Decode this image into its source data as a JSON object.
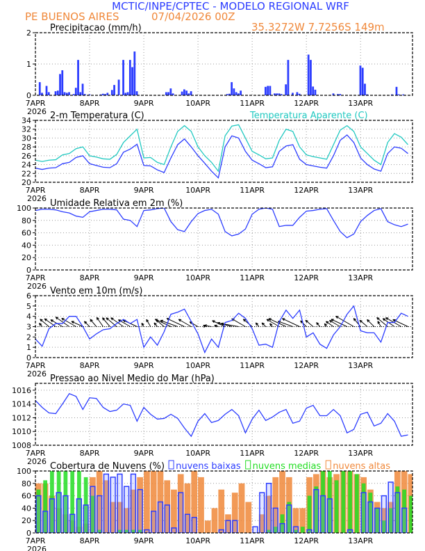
{
  "header": {
    "title": "MCTIC/INPE/CPTEC - MODELO REGIONAL WRF",
    "location": "PE BUENOS AIRES",
    "run": "07/04/2026 00Z",
    "coords": "35.3272W 7.7256S 149m"
  },
  "colors": {
    "title": "#2b3cff",
    "orange": "#f0883a",
    "blue": "#2b3cff",
    "cyan": "#1fc8c0",
    "green": "#22dd22",
    "black": "#000000"
  },
  "x_axis": {
    "labels": [
      "7APR",
      "8APR",
      "9APR",
      "10APR",
      "11APR",
      "12APR",
      "13APR"
    ],
    "year": "2026",
    "hours_range": [
      0,
      167
    ]
  },
  "chart_data": [
    {
      "type": "bar",
      "title": "Precipitacao (mm/h)",
      "ylim": [
        0,
        2
      ],
      "yticks": [
        0,
        1,
        2
      ],
      "grid": true,
      "series": [
        {
          "color": "#2b3cff",
          "hours": [
            2,
            3,
            5,
            6,
            9,
            10,
            11,
            12,
            13,
            14,
            15,
            17,
            18,
            19,
            20,
            21,
            22,
            24,
            29,
            30,
            31,
            32,
            34,
            35,
            37,
            39,
            40,
            41,
            42,
            43,
            44,
            45,
            58,
            59,
            60,
            61,
            65,
            66,
            67,
            68,
            69,
            85,
            86,
            87,
            88,
            89,
            90,
            91,
            102,
            103,
            104,
            106,
            107,
            108,
            109,
            111,
            112,
            114,
            116,
            117,
            121,
            122,
            123,
            124,
            132,
            134,
            135,
            144,
            145,
            146,
            147,
            158,
            160,
            161,
            163
          ],
          "values": [
            0.42,
            0.08,
            0.3,
            0.1,
            0.13,
            0.15,
            0.68,
            0.8,
            0.1,
            0.08,
            0.1,
            0.04,
            0.24,
            1.13,
            0.1,
            0.37,
            0.04,
            0.03,
            0.03,
            0.05,
            0.04,
            0.08,
            0.17,
            0.33,
            0.5,
            1.13,
            0.08,
            0.1,
            1.13,
            0.9,
            1.4,
            0.13,
            0.1,
            0.1,
            0.22,
            0.06,
            0.12,
            0.19,
            0.15,
            0.06,
            0.13,
            0.04,
            0.05,
            0.42,
            0.22,
            0.1,
            0.06,
            0.15,
            0.27,
            0.3,
            0.3,
            0.06,
            0.06,
            0.06,
            0.04,
            0.35,
            1.13,
            0.08,
            0.1,
            0.05,
            1.3,
            1.13,
            0.28,
            0.18,
            0.06,
            0.04,
            0.04,
            0.95,
            0.88,
            0.37,
            0.03,
            0.03,
            0.27,
            0.03,
            0.03
          ]
        }
      ]
    },
    {
      "type": "line",
      "title": "2-m Temperatura (C)",
      "ylim": [
        20,
        34
      ],
      "yticks": [
        20,
        22,
        24,
        26,
        28,
        30,
        32,
        34
      ],
      "grid": true,
      "x_step_hours": 3,
      "series": [
        {
          "color": "#2b3cff",
          "values": [
            23.2,
            22.9,
            23.2,
            23.3,
            24.2,
            24.5,
            25.6,
            26.0,
            24.2,
            23.8,
            23.4,
            23.3,
            24.2,
            26.8,
            27.5,
            28.6,
            23.8,
            23.7,
            22.8,
            22.2,
            25.5,
            28.5,
            29.8,
            28.0,
            26.0,
            24.3,
            22.5,
            21.0,
            28.0,
            30.5,
            30.0,
            27.0,
            25.0,
            24.2,
            23.3,
            23.5,
            27.0,
            28.2,
            28.5,
            25.2,
            24.0,
            23.7,
            23.4,
            23.2,
            26.0,
            29.5,
            30.7,
            29.0,
            25.5,
            24.0,
            23.0,
            22.5,
            26.5,
            28.0,
            27.7,
            26.5
          ]
        },
        {
          "name": "Temperatura Aparente (C)",
          "color": "#1fc8c0",
          "values": [
            25.0,
            24.7,
            25.0,
            25.1,
            26.2,
            26.5,
            27.6,
            28.0,
            26.0,
            25.7,
            25.3,
            25.2,
            26.3,
            29.0,
            30.5,
            32.0,
            25.5,
            25.6,
            24.5,
            24.0,
            28.0,
            31.5,
            32.8,
            31.5,
            28.0,
            26.0,
            24.5,
            22.5,
            30.5,
            32.7,
            33.0,
            30.0,
            27.0,
            26.2,
            25.3,
            25.5,
            29.5,
            32.0,
            31.5,
            28.0,
            26.2,
            25.8,
            25.5,
            25.2,
            28.5,
            31.8,
            32.8,
            31.5,
            28.0,
            26.5,
            25.0,
            24.0,
            29.0,
            31.0,
            30.2,
            28.5
          ]
        }
      ]
    },
    {
      "type": "line",
      "title": "Umidade Relativa em 2m (%)",
      "ylim": [
        0,
        100
      ],
      "yticks": [
        0,
        20,
        40,
        60,
        80,
        100
      ],
      "grid": true,
      "x_step_hours": 3,
      "series": [
        {
          "color": "#2b3cff",
          "values": [
            96,
            98,
            98,
            97,
            94,
            92,
            87,
            85,
            94,
            96,
            98,
            98,
            97,
            82,
            80,
            70,
            96,
            97,
            99,
            100,
            78,
            65,
            62,
            78,
            91,
            96,
            98,
            90,
            62,
            55,
            58,
            66,
            90,
            98,
            100,
            98,
            70,
            72,
            72,
            85,
            95,
            96,
            98,
            99,
            80,
            62,
            52,
            58,
            78,
            88,
            96,
            99,
            78,
            73,
            70,
            74
          ]
        }
      ]
    },
    {
      "type": "line",
      "title": "Vento em 10m (m/s)",
      "ylim": [
        0,
        6
      ],
      "yticks": [
        0,
        1,
        2,
        3,
        4,
        5,
        6
      ],
      "grid": true,
      "x_step_hours": 3,
      "series": [
        {
          "color": "#2b3cff",
          "values": [
            1.8,
            1.1,
            2.8,
            3.3,
            3.3,
            4.0,
            4.0,
            3.0,
            1.8,
            2.3,
            2.7,
            2.8,
            3.3,
            3.7,
            3.3,
            3.7,
            1.0,
            2.0,
            1.2,
            2.5,
            4.2,
            4.4,
            4.7,
            3.5,
            2.3,
            0.5,
            1.8,
            1.0,
            3.4,
            3.6,
            4.3,
            3.8,
            2.8,
            1.2,
            1.3,
            1.0,
            3.5,
            4.6,
            3.8,
            4.6,
            2.0,
            2.4,
            1.3,
            0.9,
            2.2,
            3.0,
            4.2,
            5.0,
            2.6,
            2.4,
            2.4,
            1.5,
            3.4,
            3.4,
            4.3,
            4.0
          ]
        }
      ],
      "wind_direction_from_deg": [
        150,
        140,
        130,
        125,
        120,
        125,
        120,
        115,
        135,
        140,
        145,
        140,
        130,
        125,
        120,
        115,
        150,
        150,
        140,
        130,
        115,
        110,
        115,
        120,
        120,
        140,
        100,
        110,
        115,
        105,
        100,
        120,
        130,
        140,
        135,
        140,
        120,
        115,
        110,
        115,
        135,
        130,
        140,
        145,
        125,
        120,
        115,
        120,
        140,
        130,
        135,
        150,
        130,
        125,
        120,
        115
      ]
    },
    {
      "type": "line",
      "title": "Pressao ao Nivel Medio do Mar (hPa)",
      "ylim": [
        1008,
        1017
      ],
      "yticks": [
        1008,
        1010,
        1012,
        1014,
        1016
      ],
      "grid": true,
      "x_step_hours": 3,
      "series": [
        {
          "color": "#2b3cff",
          "values": [
            1014.5,
            1013.5,
            1012.7,
            1012.6,
            1014.0,
            1015.5,
            1015.1,
            1013.2,
            1014.9,
            1014.8,
            1013.5,
            1012.9,
            1013.1,
            1014.0,
            1013.8,
            1011.5,
            1013.5,
            1012.5,
            1011.8,
            1011.9,
            1012.5,
            1011.9,
            1010.5,
            1009.3,
            1011.5,
            1012.6,
            1011.3,
            1011.6,
            1012.5,
            1013.2,
            1012.3,
            1009.8,
            1011.8,
            1013.1,
            1011.6,
            1012.1,
            1012.8,
            1013.2,
            1011.2,
            1011.5,
            1013.4,
            1013.8,
            1012.3,
            1012.3,
            1013.2,
            1012.3,
            1009.8,
            1010.3,
            1012.5,
            1012.8,
            1010.8,
            1011.2,
            1012.6,
            1011.5,
            1009.3,
            1009.5
          ]
        }
      ]
    },
    {
      "type": "bar",
      "title": "Cobertura de Nuvens (%)",
      "ylim": [
        0,
        100
      ],
      "yticks": [
        0,
        20,
        40,
        60,
        80,
        100
      ],
      "grid": true,
      "x_step_hours": 3,
      "series": [
        {
          "name": "nuvens altas",
          "color": "#f0883a",
          "values": [
            80,
            80,
            60,
            40,
            30,
            20,
            10,
            15,
            90,
            100,
            85,
            50,
            50,
            40,
            70,
            90,
            100,
            100,
            100,
            85,
            70,
            95,
            80,
            100,
            90,
            20,
            40,
            70,
            30,
            65,
            80,
            50,
            0,
            30,
            60,
            90,
            100,
            90,
            40,
            40,
            90,
            95,
            100,
            90,
            95,
            100,
            100,
            95,
            90,
            70,
            50,
            40,
            50,
            100,
            100,
            95
          ]
        },
        {
          "name": "nuvens medias",
          "color": "#22dd22",
          "values": [
            70,
            85,
            100,
            100,
            100,
            100,
            100,
            90,
            60,
            5,
            0,
            0,
            5,
            5,
            5,
            5,
            0,
            0,
            0,
            0,
            0,
            0,
            0,
            0,
            0,
            0,
            0,
            0,
            0,
            0,
            0,
            0,
            0,
            0,
            5,
            10,
            30,
            50,
            5,
            10,
            60,
            75,
            100,
            100,
            85,
            100,
            100,
            95,
            80,
            65,
            40,
            20,
            40,
            75,
            70,
            60
          ]
        },
        {
          "name": "nuvens baixas",
          "color": "#2b3cff",
          "values": [
            60,
            35,
            55,
            65,
            60,
            30,
            55,
            45,
            75,
            60,
            95,
            90,
            95,
            75,
            95,
            70,
            5,
            35,
            50,
            45,
            8,
            65,
            30,
            25,
            0,
            0,
            0,
            5,
            20,
            20,
            0,
            0,
            10,
            65,
            80,
            40,
            15,
            45,
            10,
            0,
            5,
            70,
            60,
            55,
            0,
            0,
            5,
            0,
            65,
            50,
            40,
            60,
            82,
            65,
            40,
            0
          ]
        }
      ]
    }
  ]
}
